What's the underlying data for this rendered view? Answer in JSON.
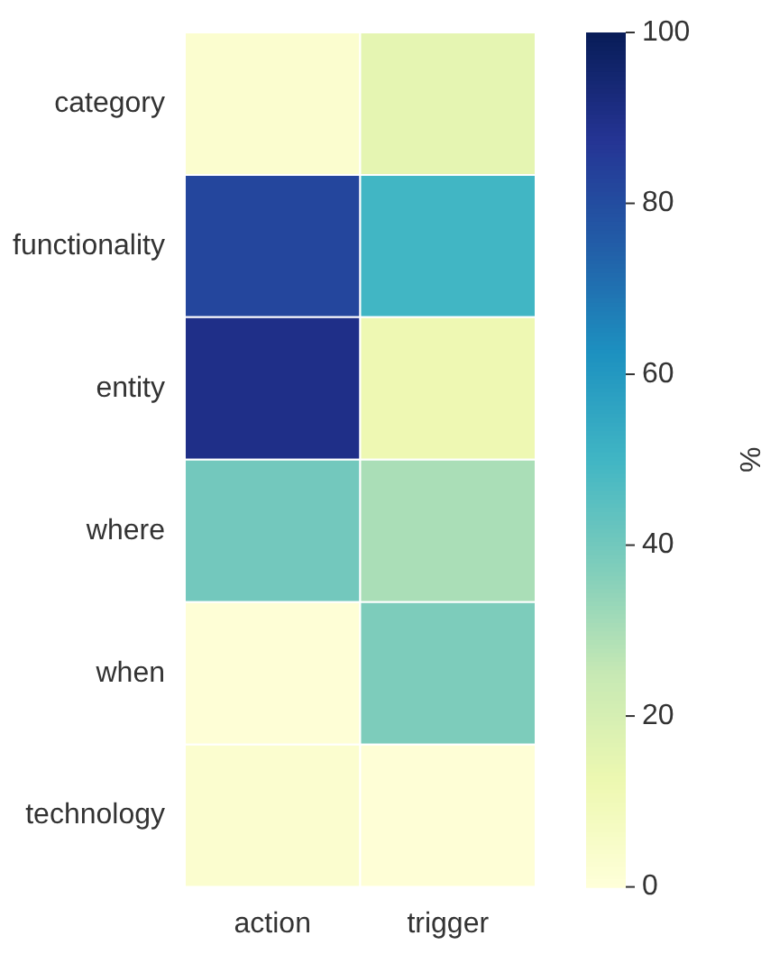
{
  "chart_data": {
    "type": "heatmap",
    "clabel": "%",
    "categories": [
      "action",
      "trigger"
    ],
    "y_categories": [
      "category",
      "functionality",
      "entity",
      "where",
      "when",
      "technology"
    ],
    "cells": [
      [
        3,
        15
      ],
      [
        82,
        50
      ],
      [
        90,
        12
      ],
      [
        40,
        30
      ],
      [
        1,
        38
      ],
      [
        3,
        1
      ]
    ],
    "clim": [
      0,
      100
    ],
    "cticks": [
      0,
      20,
      40,
      60,
      80,
      100
    ]
  }
}
